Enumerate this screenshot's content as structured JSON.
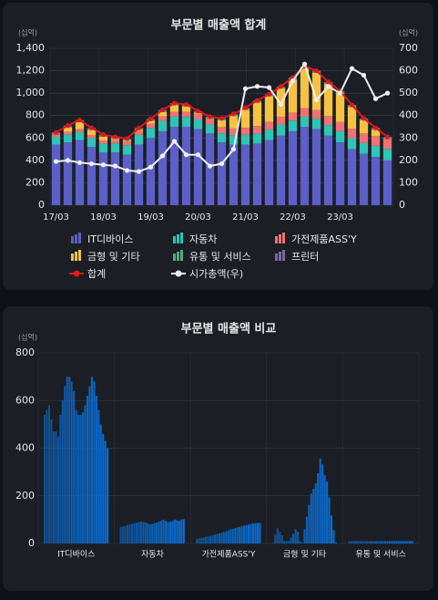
{
  "chart_data": [
    {
      "type": "combo",
      "title": "부문별 매출액 합계",
      "y_unit": "(십억)",
      "y2_unit": "(십억)",
      "categories": [
        "17/03",
        null,
        null,
        null,
        "18/03",
        null,
        null,
        null,
        "19/03",
        null,
        null,
        null,
        "20/03",
        null,
        null,
        null,
        "21/03",
        null,
        null,
        null,
        "22/03",
        null,
        null,
        null,
        "23/03",
        null,
        null,
        null,
        null
      ],
      "ylim": [
        0,
        1400
      ],
      "yticks": [
        0,
        200,
        400,
        600,
        800,
        {
          "value": 1000,
          "label": "1,000"
        },
        {
          "value": 1200,
          "label": "1,200"
        },
        {
          "value": 1400,
          "label": "1,400"
        }
      ],
      "y2lim": [
        0,
        700
      ],
      "y2ticks": [
        0,
        100,
        200,
        300,
        400,
        500,
        600,
        700
      ],
      "grid": true,
      "series": [
        {
          "name": "IT디바이스",
          "type": "bar",
          "color": "#5b5fc7",
          "values": [
            540,
            560,
            580,
            520,
            470,
            470,
            450,
            540,
            600,
            660,
            700,
            700,
            680,
            640,
            560,
            540,
            540,
            550,
            580,
            620,
            660,
            700,
            680,
            620,
            560,
            500,
            460,
            430,
            400
          ]
        },
        {
          "name": "자동차",
          "type": "bar",
          "color": "#2ec4b6",
          "values": [
            70,
            72,
            74,
            78,
            80,
            82,
            85,
            88,
            90,
            92,
            90,
            88,
            85,
            80,
            82,
            85,
            88,
            92,
            95,
            100,
            95,
            90,
            92,
            95,
            100,
            98,
            95,
            100,
            102
          ]
        },
        {
          "name": "가전제품ASS'Y",
          "type": "bar",
          "color": "#f07272",
          "values": [
            20,
            22,
            24,
            26,
            28,
            30,
            32,
            35,
            38,
            40,
            42,
            45,
            48,
            50,
            55,
            60,
            62,
            65,
            68,
            70,
            72,
            75,
            78,
            80,
            82,
            85,
            85,
            86,
            86
          ]
        },
        {
          "name": "금형 및 기타",
          "type": "bar",
          "color": "#f5c242",
          "values": [
            2,
            38,
            64,
            48,
            34,
            10,
            10,
            9,
            24,
            40,
            60,
            49,
            9,
            2,
            60,
            112,
            162,
            210,
            229,
            252,
            295,
            357,
            332,
            287,
            260,
            194,
            117,
            56,
            4
          ]
        },
        {
          "name": "유통 및 서비스",
          "type": "bar",
          "color": "#5aa77d",
          "values": [
            10,
            10,
            10,
            10,
            10,
            10,
            10,
            10,
            10,
            10,
            10,
            10,
            10,
            10,
            10,
            10,
            10,
            10,
            10,
            10,
            10,
            10,
            10,
            10,
            10,
            10,
            10,
            10,
            10
          ]
        },
        {
          "name": "프린터",
          "type": "bar",
          "color": "#7a6a9a",
          "values": [
            8,
            8,
            8,
            8,
            8,
            8,
            8,
            8,
            8,
            8,
            8,
            8,
            8,
            8,
            8,
            8,
            8,
            8,
            8,
            8,
            8,
            8,
            8,
            8,
            8,
            8,
            8,
            8,
            8
          ]
        },
        {
          "name": "합계",
          "type": "line",
          "color": "#e0161b",
          "values": [
            650,
            710,
            760,
            690,
            630,
            610,
            595,
            690,
            770,
            850,
            910,
            900,
            840,
            790,
            775,
            815,
            870,
            935,
            990,
            1060,
            1140,
            1240,
            1200,
            1100,
            1020,
            895,
            775,
            690,
            610
          ]
        },
        {
          "name": "시가총액(우)",
          "type": "line",
          "color": "#f0f0f0",
          "axis": "y2",
          "values": [
            195,
            200,
            190,
            185,
            180,
            175,
            155,
            150,
            170,
            220,
            285,
            225,
            225,
            175,
            185,
            250,
            520,
            530,
            525,
            450,
            555,
            630,
            470,
            530,
            500,
            610,
            580,
            475,
            500
          ]
        }
      ]
    },
    {
      "type": "grouped_bar",
      "title": "부문별 매출액 비교",
      "y_unit": "(십억)",
      "color": "#0a6fd6",
      "categories": [
        "IT디바이스",
        "자동차",
        "가전제품ASS'Y",
        "금형 및 기타",
        "유통 및 서비스"
      ],
      "ylim": [
        0,
        800
      ],
      "yticks": [
        0,
        200,
        400,
        600,
        800
      ],
      "grid": true,
      "groups": [
        [
          540,
          560,
          580,
          520,
          470,
          470,
          450,
          540,
          600,
          660,
          700,
          700,
          680,
          640,
          560,
          540,
          540,
          550,
          580,
          620,
          660,
          700,
          680,
          620,
          560,
          500,
          460,
          430,
          400
        ],
        [
          70,
          72,
          74,
          78,
          80,
          82,
          85,
          88,
          90,
          92,
          90,
          88,
          85,
          80,
          82,
          85,
          88,
          92,
          95,
          100,
          95,
          90,
          92,
          95,
          100,
          98,
          95,
          100,
          102
        ],
        [
          20,
          22,
          24,
          26,
          28,
          30,
          32,
          35,
          38,
          40,
          42,
          45,
          48,
          50,
          55,
          60,
          62,
          65,
          68,
          70,
          72,
          75,
          78,
          80,
          82,
          85,
          85,
          86,
          86
        ],
        [
          2,
          38,
          64,
          48,
          34,
          10,
          10,
          9,
          24,
          40,
          60,
          49,
          9,
          2,
          60,
          112,
          162,
          210,
          229,
          252,
          295,
          357,
          332,
          287,
          260,
          194,
          117,
          56,
          4
        ],
        [
          10,
          10,
          10,
          10,
          10,
          10,
          10,
          10,
          10,
          10,
          10,
          10,
          10,
          10,
          10,
          10,
          10,
          10,
          10,
          10,
          10,
          10,
          10,
          10,
          10,
          10,
          10,
          10,
          10
        ]
      ]
    }
  ]
}
